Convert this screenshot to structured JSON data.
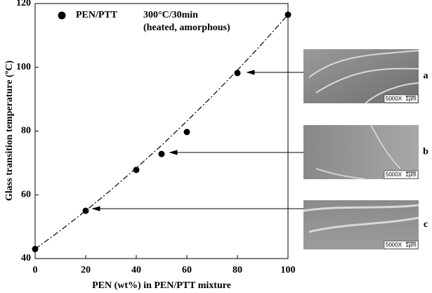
{
  "chart_data": {
    "type": "scatter",
    "xlabel": "PEN (wt%) in PEN/PTT mixture",
    "ylabel": "Glass transition temperature (ºC)",
    "xlim": [
      0,
      100
    ],
    "xticks": [
      0,
      20,
      40,
      60,
      80,
      100
    ],
    "ylim": [
      40,
      120
    ],
    "yticks": [
      40,
      60,
      80,
      100,
      120
    ],
    "series": [
      {
        "name": "PEN/PTT",
        "color": "#000000",
        "x": [
          0,
          20,
          40,
          50,
          60,
          80,
          100
        ],
        "values": [
          43,
          55,
          67.8,
          72.8,
          79.7,
          98.2,
          116.5
        ]
      },
      {
        "style": "dash-dot",
        "color": "#000000",
        "x": [
          0,
          10,
          20,
          30,
          40,
          50,
          60,
          70,
          80,
          90,
          100
        ],
        "values": [
          43,
          48.8,
          55,
          61.5,
          68.4,
          75.5,
          83.1,
          90.9,
          99.1,
          107.6,
          116.5
        ]
      }
    ],
    "annotations": [
      "300°C/30min",
      "(heated, amorphous)"
    ],
    "panels": [
      {
        "label": "a",
        "scale": "5000X",
        "bar": "1μm"
      },
      {
        "label": "b",
        "scale": "5000X",
        "bar": "1μm"
      },
      {
        "label": "c",
        "scale": "5000X",
        "bar": "1μm"
      }
    ]
  }
}
